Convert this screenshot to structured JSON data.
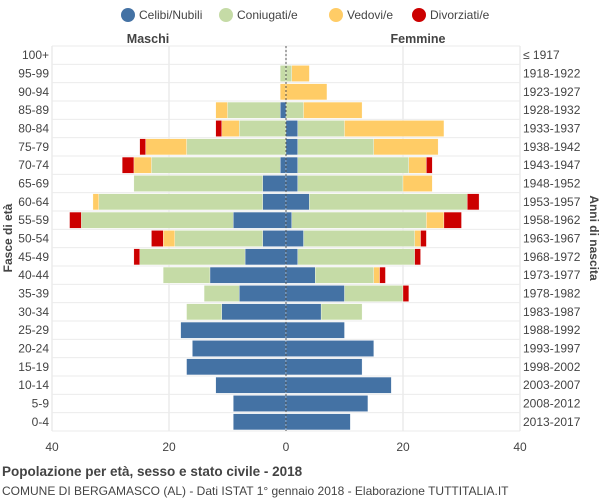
{
  "chart_data": {
    "type": "bar",
    "orientation": "horizontal-population-pyramid",
    "title": "Popolazione per età, sesso e stato civile - 2018",
    "subtitle": "COMUNE DI BERGAMASCO (AL) - Dati ISTAT 1° gennaio 2018 - Elaborazione TUTTITALIA.IT",
    "left_label": "Maschi",
    "right_label": "Femmine",
    "ylabel_left": "Fasce di età",
    "ylabel_right": "Anni di nascita",
    "xlim": [
      -40,
      40
    ],
    "xticks": [
      "40",
      "20",
      "0",
      "20",
      "40"
    ],
    "xtick_values": [
      -40,
      -20,
      0,
      20,
      40
    ],
    "age_groups": [
      "100+",
      "95-99",
      "90-94",
      "85-89",
      "80-84",
      "75-79",
      "70-74",
      "65-69",
      "60-64",
      "55-59",
      "50-54",
      "45-49",
      "40-44",
      "35-39",
      "30-34",
      "25-29",
      "20-24",
      "15-19",
      "10-14",
      "5-9",
      "0-4"
    ],
    "birth_years": [
      "≤ 1917",
      "1918-1922",
      "1923-1927",
      "1928-1932",
      "1933-1937",
      "1938-1942",
      "1943-1947",
      "1948-1952",
      "1953-1957",
      "1958-1962",
      "1963-1967",
      "1968-1972",
      "1973-1977",
      "1978-1982",
      "1983-1987",
      "1988-1992",
      "1993-1997",
      "1998-2002",
      "2003-2007",
      "2008-2012",
      "2013-2017"
    ],
    "legend": [
      {
        "name": "Celibi/Nubili",
        "color": "#4472a4"
      },
      {
        "name": "Coniugati/e",
        "color": "#c5dba6"
      },
      {
        "name": "Vedovi/e",
        "color": "#ffcc66"
      },
      {
        "name": "Divorziati/e",
        "color": "#cc0000"
      }
    ],
    "series": {
      "male": {
        "celibi": [
          0,
          0,
          0,
          1,
          0,
          0,
          1,
          4,
          4,
          9,
          4,
          7,
          13,
          8,
          11,
          18,
          16,
          17,
          12,
          9,
          9
        ],
        "coniugati": [
          0,
          1,
          0,
          9,
          8,
          17,
          22,
          22,
          28,
          26,
          15,
          18,
          8,
          6,
          6,
          0,
          0,
          0,
          0,
          0,
          0
        ],
        "vedovi": [
          0,
          0,
          1,
          2,
          3,
          7,
          3,
          0,
          1,
          0,
          2,
          0,
          0,
          0,
          0,
          0,
          0,
          0,
          0,
          0,
          0
        ],
        "divorziati": [
          0,
          0,
          0,
          0,
          1,
          1,
          2,
          0,
          0,
          2,
          2,
          1,
          0,
          0,
          0,
          0,
          0,
          0,
          0,
          0,
          0
        ]
      },
      "female": {
        "nubili": [
          0,
          0,
          0,
          0,
          2,
          2,
          2,
          2,
          4,
          1,
          3,
          2,
          5,
          10,
          6,
          10,
          15,
          13,
          18,
          14,
          11
        ],
        "coniugate": [
          0,
          1,
          0,
          3,
          8,
          13,
          19,
          18,
          27,
          23,
          19,
          20,
          10,
          10,
          7,
          0,
          0,
          0,
          0,
          0,
          0
        ],
        "vedove": [
          0,
          3,
          7,
          10,
          17,
          11,
          3,
          5,
          0,
          3,
          1,
          0,
          1,
          0,
          0,
          0,
          0,
          0,
          0,
          0,
          0
        ],
        "divorziate": [
          0,
          0,
          0,
          0,
          0,
          0,
          1,
          0,
          2,
          3,
          1,
          1,
          1,
          1,
          0,
          0,
          0,
          0,
          0,
          0,
          0
        ]
      }
    }
  }
}
